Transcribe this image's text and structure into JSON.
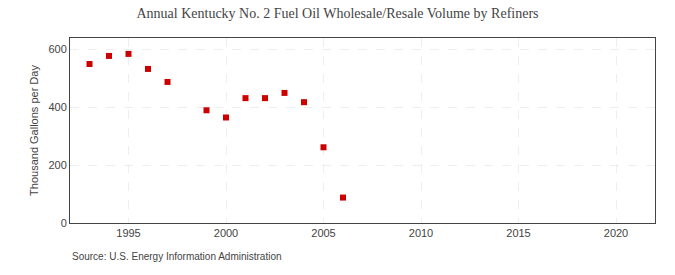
{
  "chart_data": {
    "type": "scatter",
    "title": "Annual Kentucky No. 2 Fuel Oil Wholesale/Resale Volume by Refiners",
    "ylabel": "Thousand Gallons per Day",
    "annotations": [
      "Source: U.S. Energy Information Administration"
    ],
    "x": [
      1993,
      1994,
      1995,
      1996,
      1997,
      1999,
      2000,
      2001,
      2002,
      2003,
      2004,
      2005,
      2006
    ],
    "values": [
      550,
      578,
      585,
      533,
      488,
      390,
      365,
      432,
      432,
      450,
      418,
      262,
      88
    ],
    "color": "#cc0000",
    "marker": "square",
    "xlim": [
      1992,
      2022
    ],
    "ylim": [
      0,
      640
    ],
    "xticks": [
      1995,
      2000,
      2005,
      2010,
      2015,
      2020
    ],
    "yticks": [
      0,
      200,
      400,
      600
    ],
    "grid": true
  }
}
